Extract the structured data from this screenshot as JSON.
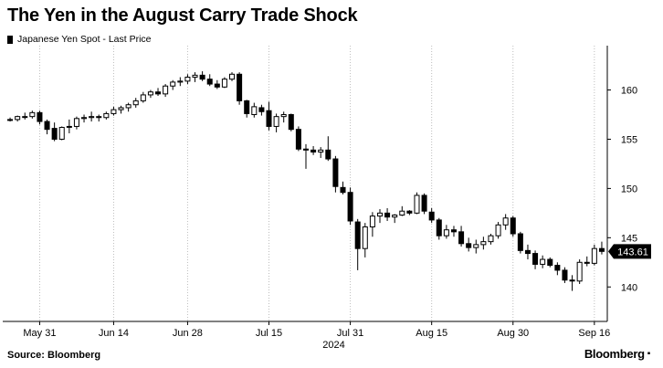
{
  "header": {
    "title": "The Yen in the August Carry Trade Shock",
    "legend_label": "Japanese Yen Spot - Last Price"
  },
  "footer": {
    "source": "Source: Bloomberg",
    "brand": "Bloomberg"
  },
  "chart_data": {
    "type": "candlestick",
    "title": "The Yen in the August Carry Trade Shock",
    "xlabel": "2024",
    "ylabel": "",
    "series_name": "Japanese Yen Spot - Last Price",
    "ylim": [
      136.5,
      164.5
    ],
    "y_axis_position": "right",
    "y_ticks": [
      140,
      145,
      150,
      155,
      160
    ],
    "x_tick_labels": [
      "May 31",
      "Jun 14",
      "Jun 28",
      "Jul 15",
      "Jul 31",
      "Aug 15",
      "Aug 30",
      "Sep 16"
    ],
    "x_tick_index": [
      4,
      14,
      24,
      35,
      46,
      57,
      68,
      79
    ],
    "year_label": "2024",
    "grid": "vertical dotted",
    "last_price": 143.61,
    "candles": [
      [
        157.0,
        157.2,
        156.8,
        157.0
      ],
      [
        157.0,
        157.4,
        156.8,
        157.3
      ],
      [
        157.3,
        157.7,
        157.0,
        157.3
      ],
      [
        157.3,
        157.9,
        157.1,
        157.7
      ],
      [
        157.7,
        157.9,
        156.5,
        156.8
      ],
      [
        156.8,
        157.0,
        155.5,
        156.0
      ],
      [
        156.1,
        156.7,
        154.8,
        155.0
      ],
      [
        155.0,
        156.3,
        154.9,
        156.2
      ],
      [
        156.3,
        157.0,
        155.6,
        156.3
      ],
      [
        156.3,
        157.3,
        156.0,
        157.1
      ],
      [
        157.1,
        157.5,
        156.7,
        157.2
      ],
      [
        157.2,
        157.8,
        156.8,
        157.3
      ],
      [
        157.3,
        157.5,
        156.8,
        157.2
      ],
      [
        157.2,
        157.8,
        157.0,
        157.6
      ],
      [
        157.6,
        158.3,
        157.4,
        158.0
      ],
      [
        158.0,
        158.4,
        157.6,
        158.2
      ],
      [
        158.2,
        158.7,
        157.8,
        158.5
      ],
      [
        158.5,
        159.2,
        158.2,
        158.9
      ],
      [
        158.9,
        159.8,
        158.7,
        159.5
      ],
      [
        159.5,
        160.0,
        159.2,
        159.8
      ],
      [
        159.8,
        160.2,
        159.4,
        159.6
      ],
      [
        159.6,
        160.6,
        159.3,
        160.4
      ],
      [
        160.4,
        161.0,
        160.0,
        160.8
      ],
      [
        160.8,
        161.3,
        160.4,
        160.9
      ],
      [
        160.9,
        161.6,
        160.6,
        161.3
      ],
      [
        161.3,
        161.8,
        160.8,
        161.5
      ],
      [
        161.5,
        161.9,
        160.9,
        161.1
      ],
      [
        161.1,
        161.6,
        160.4,
        160.6
      ],
      [
        160.6,
        161.0,
        160.1,
        160.3
      ],
      [
        160.3,
        161.3,
        160.2,
        161.1
      ],
      [
        161.1,
        161.8,
        160.9,
        161.6
      ],
      [
        161.6,
        161.8,
        158.5,
        158.9
      ],
      [
        158.9,
        159.0,
        157.2,
        157.6
      ],
      [
        157.5,
        158.7,
        157.2,
        158.3
      ],
      [
        158.2,
        158.5,
        157.4,
        157.8
      ],
      [
        157.9,
        158.8,
        155.9,
        156.3
      ],
      [
        156.3,
        157.6,
        155.7,
        157.3
      ],
      [
        157.3,
        157.8,
        156.7,
        157.5
      ],
      [
        157.5,
        157.6,
        155.8,
        156.0
      ],
      [
        156.0,
        156.3,
        153.8,
        154.0
      ],
      [
        154.0,
        154.5,
        152.0,
        153.9
      ],
      [
        153.9,
        154.3,
        153.4,
        153.7
      ],
      [
        153.7,
        154.2,
        153.1,
        153.9
      ],
      [
        153.9,
        155.3,
        152.8,
        153.0
      ],
      [
        153.0,
        153.3,
        149.6,
        150.2
      ],
      [
        150.1,
        150.7,
        149.4,
        149.6
      ],
      [
        149.6,
        150.1,
        146.3,
        146.7
      ],
      [
        146.6,
        146.9,
        141.7,
        143.9
      ],
      [
        143.9,
        146.5,
        143.0,
        146.1
      ],
      [
        146.1,
        147.6,
        145.1,
        147.2
      ],
      [
        147.2,
        147.9,
        146.5,
        147.5
      ],
      [
        147.5,
        148.0,
        146.7,
        147.1
      ],
      [
        147.1,
        147.4,
        146.5,
        147.3
      ],
      [
        147.3,
        148.2,
        147.2,
        147.7
      ],
      [
        147.7,
        147.8,
        147.3,
        147.5
      ],
      [
        147.5,
        149.6,
        147.4,
        149.3
      ],
      [
        149.3,
        149.5,
        147.4,
        147.7
      ],
      [
        147.6,
        148.0,
        146.5,
        146.8
      ],
      [
        146.8,
        147.0,
        144.8,
        145.2
      ],
      [
        145.2,
        146.3,
        144.9,
        145.8
      ],
      [
        145.8,
        146.2,
        145.1,
        145.6
      ],
      [
        145.6,
        146.2,
        144.1,
        144.4
      ],
      [
        144.4,
        145.0,
        143.6,
        144.0
      ],
      [
        144.0,
        144.8,
        143.4,
        144.3
      ],
      [
        144.3,
        145.1,
        143.8,
        144.6
      ],
      [
        144.6,
        145.4,
        144.3,
        145.2
      ],
      [
        145.2,
        146.6,
        144.9,
        146.3
      ],
      [
        146.3,
        147.4,
        145.8,
        147.0
      ],
      [
        147.0,
        147.2,
        145.1,
        145.4
      ],
      [
        145.4,
        145.6,
        143.4,
        143.7
      ],
      [
        143.7,
        144.3,
        142.8,
        143.4
      ],
      [
        143.4,
        143.7,
        141.8,
        142.3
      ],
      [
        142.3,
        143.2,
        141.9,
        142.8
      ],
      [
        142.8,
        143.0,
        142.0,
        142.2
      ],
      [
        142.2,
        142.5,
        141.2,
        141.7
      ],
      [
        141.7,
        142.0,
        140.4,
        140.7
      ],
      [
        140.7,
        141.2,
        139.6,
        140.6
      ],
      [
        140.6,
        142.8,
        140.3,
        142.5
      ],
      [
        142.5,
        143.1,
        142.1,
        142.4
      ],
      [
        142.4,
        144.3,
        142.2,
        143.9
      ],
      [
        143.9,
        144.6,
        143.3,
        143.61
      ]
    ]
  }
}
